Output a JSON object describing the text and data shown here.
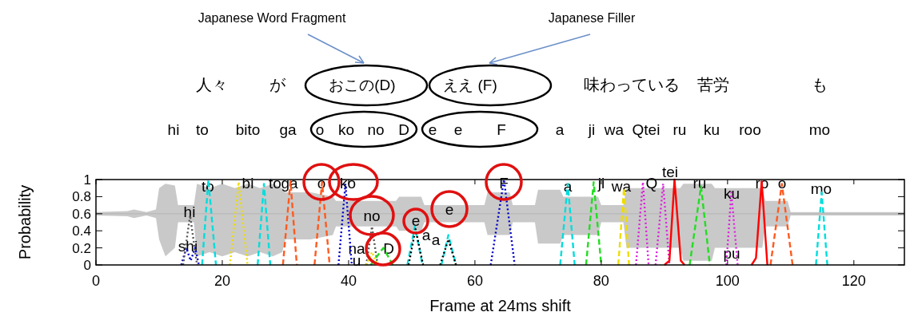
{
  "chart_data": {
    "type": "line",
    "xlabel": "Frame at 24ms shift",
    "ylabel": "Probability",
    "xlim": [
      0,
      128
    ],
    "ylim": [
      0,
      1
    ],
    "xticks": [
      0,
      20,
      40,
      60,
      80,
      100,
      120
    ],
    "yticks": [
      0,
      0.2,
      0.4,
      0.6,
      0.8,
      1
    ],
    "series": [
      {
        "type": "line",
        "color": "#bbbbbb",
        "x": [
          0,
          5,
          6,
          8,
          9.5,
          10,
          11,
          12.5,
          13,
          15.5,
          16,
          18,
          20,
          22,
          24,
          26,
          28,
          29.5,
          30,
          34,
          37.5,
          38,
          44,
          47.5,
          48,
          51.5,
          52,
          61.5,
          62,
          65.5,
          66,
          69.5,
          70,
          73.5,
          74,
          79.5,
          80,
          83.5,
          84,
          92.5,
          93,
          97.5,
          98,
          105.5,
          106,
          109.5,
          110,
          128
        ],
        "values": [
          0.6,
          0.6,
          0.6,
          0.6,
          0.6,
          0.6,
          0.6,
          0.6,
          0.6,
          0.6,
          0.6,
          0.6,
          0.6,
          0.6,
          0.6,
          0.6,
          0.6,
          0.6,
          0.6,
          0.6,
          0.6,
          0.6,
          0.6,
          0.6,
          0.6,
          0.6,
          0.6,
          0.6,
          0.6,
          0.6,
          0.6,
          0.6,
          0.6,
          0.6,
          0.6,
          0.6,
          0.6,
          0.6,
          0.6,
          0.6,
          0.6,
          0.6,
          0.6,
          0.6,
          0.6,
          0.6,
          0.6,
          0.6
        ],
        "lower": [
          0.58,
          0.57,
          0.55,
          0.58,
          0.55,
          0.3,
          0.1,
          0.2,
          0.5,
          0.5,
          0.1,
          0.15,
          0.1,
          0.15,
          0.1,
          0.15,
          0.1,
          0.15,
          0.3,
          0.3,
          0.35,
          0.45,
          0.45,
          0.45,
          0.4,
          0.4,
          0.5,
          0.5,
          0.35,
          0.35,
          0.5,
          0.5,
          0.25,
          0.25,
          0.35,
          0.35,
          0.5,
          0.5,
          0.2,
          0.2,
          0.05,
          0.05,
          0.2,
          0.2,
          0.45,
          0.45,
          0.58,
          0.58
        ],
        "upper": [
          0.62,
          0.63,
          0.65,
          0.62,
          0.65,
          0.9,
          0.95,
          0.93,
          0.7,
          0.7,
          0.95,
          0.9,
          0.95,
          0.9,
          0.95,
          0.9,
          0.95,
          0.9,
          0.85,
          0.85,
          0.8,
          0.75,
          0.75,
          0.75,
          0.8,
          0.8,
          0.7,
          0.7,
          0.85,
          0.85,
          0.7,
          0.7,
          0.88,
          0.88,
          0.8,
          0.8,
          0.7,
          0.7,
          0.9,
          0.9,
          0.95,
          0.95,
          0.9,
          0.9,
          0.75,
          0.75,
          0.62,
          0.62
        ]
      },
      {
        "color": "#0000cc",
        "line_style": "dotted",
        "x": [
          13.5,
          14.3,
          15,
          15.7,
          16.3
        ],
        "values": [
          0,
          0.2,
          0.05,
          0.2,
          0
        ]
      },
      {
        "color": "#555555",
        "line_style": "dotted",
        "x": [
          13.8,
          14.9,
          16
        ],
        "values": [
          0,
          0.58,
          0
        ]
      },
      {
        "color": "#00dddd",
        "line_style": "dashed",
        "x": [
          16.8,
          17.8,
          19
        ],
        "values": [
          0,
          1,
          0
        ]
      },
      {
        "color": "#eedd00",
        "line_style": "dotted",
        "x": [
          21.2,
          22.6,
          24
        ],
        "values": [
          0,
          0.97,
          0
        ]
      },
      {
        "color": "#00dddd",
        "line_style": "dashed",
        "x": [
          25.6,
          26.6,
          27.6
        ],
        "values": [
          0,
          0.95,
          0
        ]
      },
      {
        "color": "#ff5a1f",
        "line_style": "dashed",
        "x": [
          29.6,
          30.8,
          31.8
        ],
        "values": [
          0,
          0.98,
          0
        ]
      },
      {
        "color": "#ff5a1f",
        "line_style": "dashed",
        "x": [
          34.6,
          35.8,
          37
        ],
        "values": [
          0,
          0.97,
          0
        ]
      },
      {
        "color": "#0000cc",
        "line_style": "dotted",
        "x": [
          38.4,
          39.5,
          40.5
        ],
        "values": [
          0,
          0.95,
          0
        ]
      },
      {
        "color": "#555555",
        "line_style": "dotted",
        "x": [
          42.8,
          43.7,
          44.6
        ],
        "values": [
          0,
          0.45,
          0
        ]
      },
      {
        "color": "#eedd00",
        "line_style": "dotted",
        "x": [
          42.8,
          43.7,
          44.6
        ],
        "values": [
          0,
          0.15,
          0
        ]
      },
      {
        "color": "#22dd22",
        "line_style": "dashed",
        "x": [
          43.5,
          45.5,
          47
        ],
        "values": [
          0,
          0.2,
          0
        ]
      },
      {
        "color": "#00dddd",
        "line_style": "dashed",
        "x": [
          49.3,
          50.5,
          51.7
        ],
        "values": [
          0,
          0.45,
          0
        ]
      },
      {
        "color": "#000000",
        "line_style": "dotted",
        "x": [
          49.5,
          50.6,
          51.8
        ],
        "values": [
          0,
          0.42,
          0
        ]
      },
      {
        "color": "#00dddd",
        "line_style": "dashed",
        "x": [
          54.7,
          55.8,
          57
        ],
        "values": [
          0,
          0.35,
          0
        ]
      },
      {
        "color": "#000000",
        "line_style": "dotted",
        "x": [
          54.5,
          55.8,
          57
        ],
        "values": [
          0,
          0.3,
          0
        ]
      },
      {
        "color": "#0000cc",
        "line_style": "dotted",
        "x": [
          62.5,
          64.6,
          66.3
        ],
        "values": [
          0,
          1,
          0
        ]
      },
      {
        "color": "#00dddd",
        "line_style": "dashed",
        "x": [
          73.5,
          74.7,
          75.8
        ],
        "values": [
          0,
          0.95,
          0
        ]
      },
      {
        "color": "#22dd22",
        "line_style": "dashed",
        "x": [
          77.6,
          78.8,
          80
        ],
        "values": [
          0,
          0.97,
          0
        ]
      },
      {
        "color": "#eedd00",
        "line_style": "dashed",
        "x": [
          82.7,
          83.6,
          84.4
        ],
        "values": [
          0,
          0.9,
          0
        ]
      },
      {
        "color": "#dd22dd",
        "line_style": "dotted",
        "x": [
          85.5,
          86.6,
          87.5
        ],
        "values": [
          0,
          0.97,
          0
        ]
      },
      {
        "color": "#dd22dd",
        "line_style": "dotted",
        "x": [
          88.6,
          89.8,
          90.8
        ],
        "values": [
          0,
          0.95,
          0
        ]
      },
      {
        "color": "#ff0000",
        "line_style": "solid",
        "x": [
          90,
          90.8,
          91.6,
          92.6,
          93.2
        ],
        "values": [
          0,
          0.05,
          1,
          0.05,
          0
        ]
      },
      {
        "color": "#22dd22",
        "line_style": "dashed",
        "x": [
          94,
          95.8,
          97.2
        ],
        "values": [
          0,
          0.92,
          0
        ]
      },
      {
        "color": "#dd22dd",
        "line_style": "dotted",
        "x": [
          99.8,
          100.6,
          101.6
        ],
        "values": [
          0,
          0.85,
          0
        ]
      },
      {
        "color": "#ff0000",
        "line_style": "solid",
        "x": [
          103.8,
          104.5,
          105.4,
          106.3
        ],
        "values": [
          0,
          0.08,
          0.98,
          0
        ]
      },
      {
        "color": "#ff5a1f",
        "line_style": "dashed",
        "x": [
          106.8,
          108.6,
          110.3
        ],
        "values": [
          0,
          0.95,
          0
        ]
      },
      {
        "color": "#00dddd",
        "line_style": "dashed",
        "x": [
          114,
          114.9,
          115.8
        ],
        "values": [
          0,
          0.85,
          0
        ]
      }
    ],
    "annotations": [
      "Japanese Word Fragment",
      "Japanese Filler",
      "人々",
      "が",
      "おこの(D)",
      "ええ (F)",
      "味わっている",
      "苦労",
      "も",
      "hi",
      "to",
      "bito",
      "ga",
      "o",
      "ko",
      "no",
      "D",
      "e",
      "e",
      "F",
      "a",
      "ji",
      "wa",
      "Qtei",
      "ru",
      "ku",
      "roo",
      "mo",
      "hi",
      "shi",
      "to",
      "bi",
      "to",
      "ga",
      "o",
      "ko",
      "no",
      "na",
      "u",
      "D",
      "e",
      "a",
      "e",
      "a",
      "F",
      "a",
      "ji",
      "wa",
      "Q",
      "tei",
      "ru",
      "ku",
      "pu",
      "ro",
      "o",
      "mo"
    ]
  }
}
